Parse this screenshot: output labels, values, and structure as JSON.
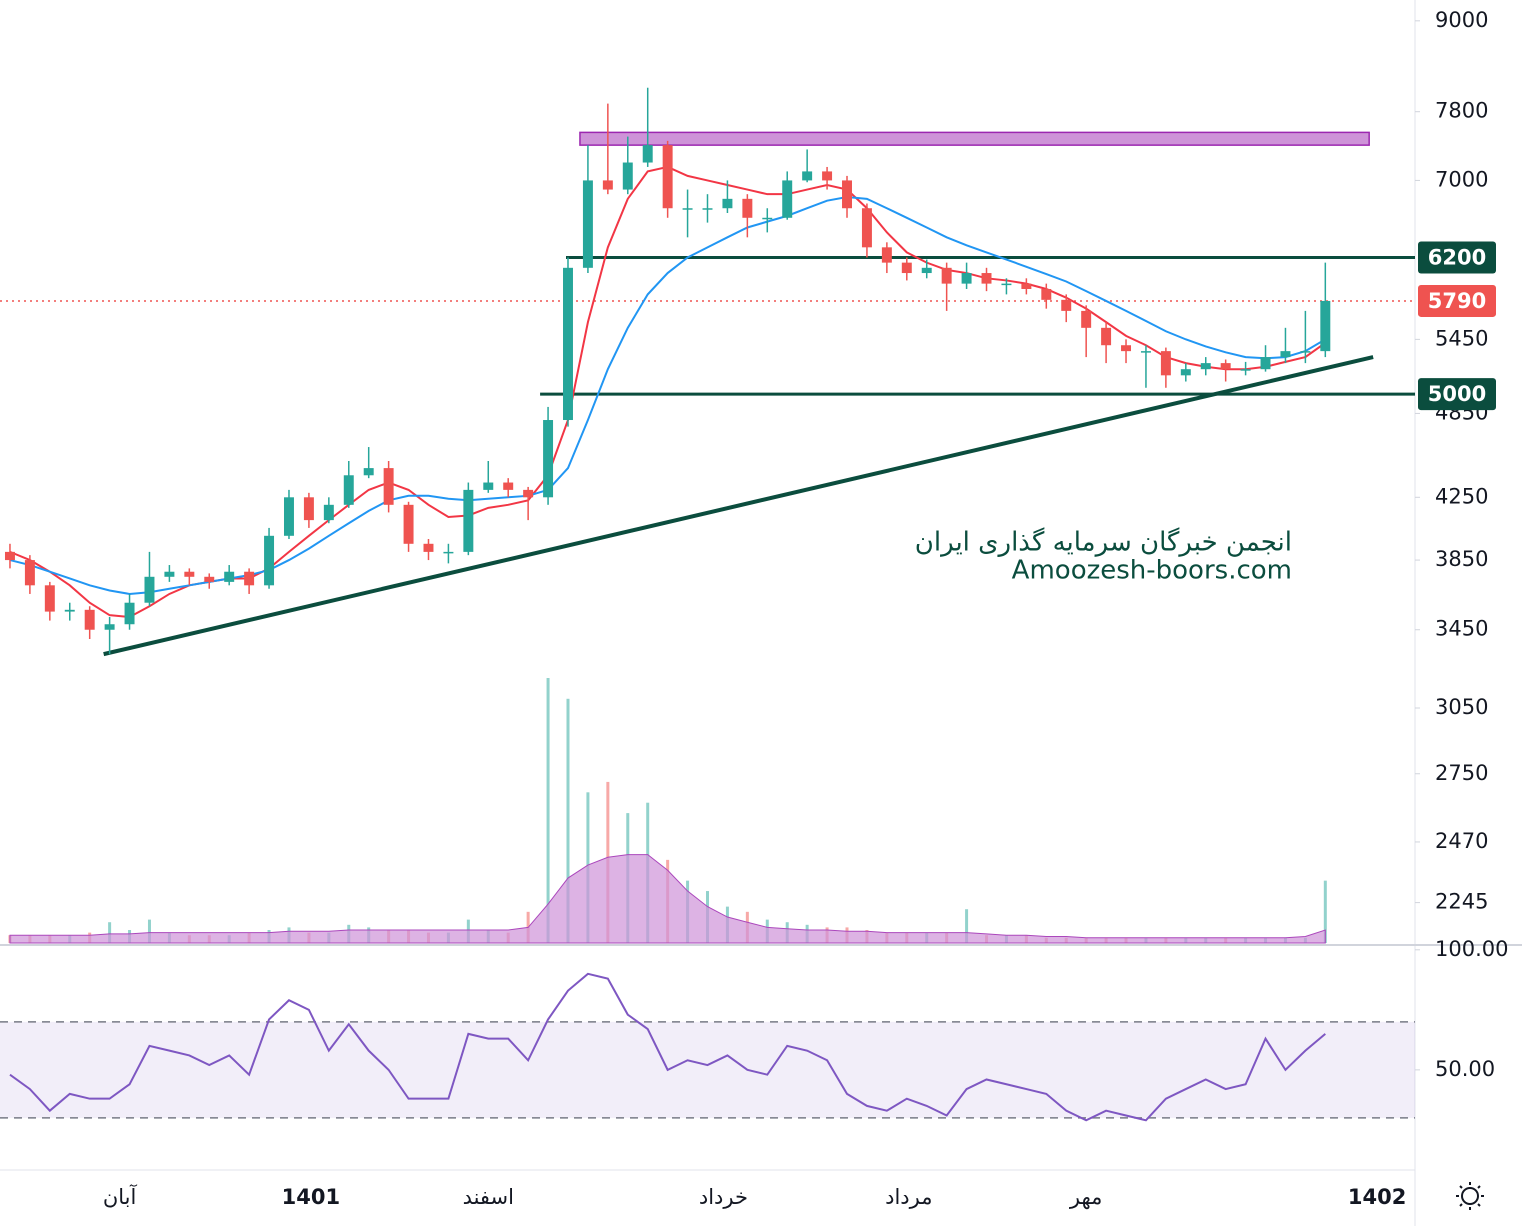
{
  "chart_data": {
    "type": "candlestick",
    "up_color": "#26a69a",
    "down_color": "#ef5350",
    "open": [
      3900,
      3850,
      3700,
      3550,
      3560,
      3450,
      3480,
      3600,
      3750,
      3780,
      3750,
      3720,
      3780,
      3700,
      4000,
      4250,
      4100,
      4200,
      4400,
      4450,
      4200,
      3950,
      3900,
      3900,
      4300,
      4350,
      4300,
      4250,
      4800,
      6100,
      7000,
      6900,
      7200,
      7400,
      6700,
      6700,
      6700,
      6800,
      6600,
      6600,
      7000,
      7100,
      7000,
      6700,
      6300,
      6150,
      6050,
      6100,
      5950,
      6050,
      5950,
      5950,
      5900,
      5800,
      5700,
      5550,
      5400,
      5350,
      5350,
      5150,
      5200,
      5250,
      5200,
      5200,
      5300,
      5350,
      5350
    ],
    "high": [
      3950,
      3880,
      3720,
      3600,
      3580,
      3520,
      3650,
      3900,
      3820,
      3800,
      3770,
      3820,
      3800,
      4050,
      4300,
      4280,
      4250,
      4500,
      4600,
      4500,
      4220,
      3980,
      3950,
      4350,
      4500,
      4380,
      4320,
      4900,
      6200,
      7400,
      7900,
      7500,
      8100,
      7450,
      6900,
      6850,
      7000,
      6850,
      6700,
      7100,
      7350,
      7150,
      7050,
      6750,
      6350,
      6200,
      6180,
      6150,
      6150,
      6100,
      6000,
      6000,
      5950,
      5850,
      5750,
      5600,
      5450,
      5400,
      5380,
      5250,
      5300,
      5280,
      5260,
      5400,
      5550,
      5700,
      6150
    ],
    "low": [
      3800,
      3650,
      3500,
      3500,
      3400,
      3320,
      3450,
      3580,
      3720,
      3700,
      3680,
      3700,
      3650,
      3680,
      3980,
      4050,
      4080,
      4180,
      4380,
      4150,
      3900,
      3850,
      3830,
      3880,
      4280,
      4250,
      4100,
      4200,
      4750,
      6050,
      6850,
      6850,
      7150,
      6600,
      6400,
      6550,
      6650,
      6400,
      6450,
      6580,
      6980,
      6900,
      6600,
      6200,
      6050,
      5980,
      6000,
      5700,
      5900,
      5880,
      5850,
      5850,
      5720,
      5600,
      5300,
      5250,
      5250,
      5050,
      5050,
      5100,
      5150,
      5100,
      5150,
      5180,
      5250,
      5250,
      5300
    ],
    "close": [
      3850,
      3700,
      3550,
      3560,
      3450,
      3480,
      3600,
      3750,
      3780,
      3750,
      3720,
      3780,
      3700,
      4000,
      4250,
      4100,
      4200,
      4400,
      4450,
      4200,
      3950,
      3900,
      3900,
      4300,
      4350,
      4300,
      4250,
      4800,
      6100,
      7000,
      6900,
      7200,
      7400,
      6700,
      6700,
      6700,
      6800,
      6600,
      6600,
      7000,
      7100,
      7000,
      6700,
      6300,
      6150,
      6050,
      6100,
      5950,
      6050,
      5950,
      5950,
      5900,
      5800,
      5700,
      5550,
      5400,
      5350,
      5350,
      5150,
      5200,
      5250,
      5200,
      5200,
      5300,
      5350,
      5350,
      5790
    ],
    "ylim": [
      2100,
      9300
    ],
    "log_scale": true,
    "yticks": [
      9000,
      7800,
      7000,
      5450,
      4850,
      4250,
      3850,
      3450,
      3050,
      2750,
      2470,
      2245
    ],
    "xlim": [
      -0.5,
      70.5
    ],
    "xticks": [
      {
        "value": 5.5,
        "label": "آبان"
      },
      {
        "value": 15.1,
        "label": "1401",
        "bold": true
      },
      {
        "value": 24,
        "label": "اسفند"
      },
      {
        "value": 35.8,
        "label": "خرداد"
      },
      {
        "value": 45.1,
        "label": "مرداد"
      },
      {
        "value": 54,
        "label": "مهر"
      },
      {
        "value": 68.6,
        "label": "1402",
        "bold": true
      }
    ],
    "moving_averages": [
      {
        "color": "#f23645",
        "values": [
          3900,
          3850,
          3780,
          3700,
          3600,
          3530,
          3520,
          3580,
          3650,
          3700,
          3720,
          3740,
          3740,
          3800,
          3900,
          4000,
          4100,
          4200,
          4300,
          4350,
          4300,
          4200,
          4120,
          4130,
          4180,
          4200,
          4230,
          4400,
          4800,
          5600,
          6300,
          6800,
          7100,
          7150,
          7050,
          7000,
          6950,
          6900,
          6850,
          6850,
          6900,
          6950,
          6900,
          6700,
          6450,
          6250,
          6150,
          6080,
          6050,
          6000,
          5980,
          5950,
          5900,
          5820,
          5720,
          5600,
          5480,
          5400,
          5300,
          5250,
          5220,
          5200,
          5200,
          5220,
          5260,
          5300,
          5420
        ]
      },
      {
        "color": "#2196f3",
        "values": [
          3850,
          3820,
          3780,
          3740,
          3700,
          3670,
          3650,
          3660,
          3680,
          3700,
          3720,
          3740,
          3760,
          3790,
          3850,
          3920,
          4000,
          4080,
          4160,
          4230,
          4260,
          4260,
          4240,
          4230,
          4240,
          4250,
          4260,
          4300,
          4450,
          4800,
          5200,
          5550,
          5850,
          6050,
          6200,
          6300,
          6400,
          6500,
          6560,
          6620,
          6700,
          6780,
          6820,
          6800,
          6700,
          6600,
          6500,
          6400,
          6320,
          6250,
          6180,
          6110,
          6040,
          5970,
          5880,
          5790,
          5700,
          5610,
          5520,
          5450,
          5390,
          5340,
          5300,
          5290,
          5300,
          5350,
          5450
        ]
      }
    ],
    "levels": [
      {
        "value": 6200,
        "x_start": 27.9,
        "color": "#0b4d3e"
      },
      {
        "value": 5000,
        "x_start": 26.6,
        "color": "#0b4d3e"
      }
    ],
    "last_price": {
      "value": 5790,
      "color": "#ef5350"
    },
    "zone": {
      "x": [
        28.6,
        68.2
      ],
      "y": [
        7400,
        7550
      ],
      "color": "#ce93d8",
      "border": "#9c27b0"
    },
    "trendline": {
      "x": [
        4.7,
        68.4
      ],
      "y": [
        3320,
        5300
      ],
      "color": "#0b4d3e"
    },
    "watermark": [
      "انجمن خبرگان سرمایه گذاری ایران",
      "Amoozesh-boors.com"
    ],
    "volume": {
      "values": [
        0.3,
        0.3,
        0.3,
        0.3,
        0.4,
        0.8,
        0.5,
        0.9,
        0.4,
        0.3,
        0.3,
        0.3,
        0.4,
        0.5,
        0.6,
        0.4,
        0.4,
        0.7,
        0.6,
        0.5,
        0.5,
        0.4,
        0.4,
        0.9,
        0.5,
        0.4,
        1.2,
        10.2,
        9.4,
        5.8,
        6.2,
        5.0,
        5.4,
        3.2,
        2.4,
        2.0,
        1.4,
        1.2,
        0.9,
        0.8,
        0.7,
        0.6,
        0.6,
        0.5,
        0.4,
        0.4,
        0.4,
        0.4,
        1.3,
        0.3,
        0.3,
        0.3,
        0.2,
        0.2,
        0.2,
        0.2,
        0.2,
        0.2,
        0.2,
        0.2,
        0.2,
        0.2,
        0.2,
        0.2,
        0.2,
        0.2,
        2.4
      ],
      "ma": [
        0.3,
        0.3,
        0.3,
        0.3,
        0.3,
        0.35,
        0.35,
        0.4,
        0.4,
        0.4,
        0.4,
        0.4,
        0.4,
        0.4,
        0.45,
        0.45,
        0.45,
        0.5,
        0.5,
        0.5,
        0.5,
        0.5,
        0.5,
        0.5,
        0.5,
        0.5,
        0.6,
        1.5,
        2.5,
        3.0,
        3.3,
        3.4,
        3.4,
        2.8,
        2.0,
        1.4,
        1.0,
        0.8,
        0.6,
        0.55,
        0.5,
        0.5,
        0.45,
        0.45,
        0.4,
        0.4,
        0.4,
        0.4,
        0.4,
        0.35,
        0.3,
        0.3,
        0.25,
        0.25,
        0.2,
        0.2,
        0.2,
        0.2,
        0.2,
        0.2,
        0.2,
        0.2,
        0.2,
        0.2,
        0.2,
        0.25,
        0.5
      ],
      "ma_color": "#ce93d8"
    },
    "rsi": {
      "values": [
        48,
        42,
        33,
        40,
        38,
        38,
        44,
        60,
        58,
        56,
        52,
        56,
        48,
        71,
        79,
        75,
        58,
        69,
        58,
        50,
        38,
        38,
        38,
        65,
        63,
        63,
        54,
        71,
        83,
        90,
        88,
        73,
        67,
        50,
        54,
        52,
        56,
        50,
        48,
        60,
        58,
        54,
        40,
        35,
        33,
        38,
        35,
        31,
        42,
        46,
        44,
        42,
        40,
        33,
        29,
        33,
        31,
        29,
        38,
        42,
        46,
        42,
        44,
        63,
        50,
        58,
        65
      ],
      "ylim": [
        8.3,
        102
      ],
      "yticks": [
        {
          "value": 100,
          "label": "100.00"
        },
        {
          "value": 50,
          "label": "50.00"
        }
      ],
      "bands": [
        30,
        70
      ],
      "color": "#7e57c2"
    }
  }
}
